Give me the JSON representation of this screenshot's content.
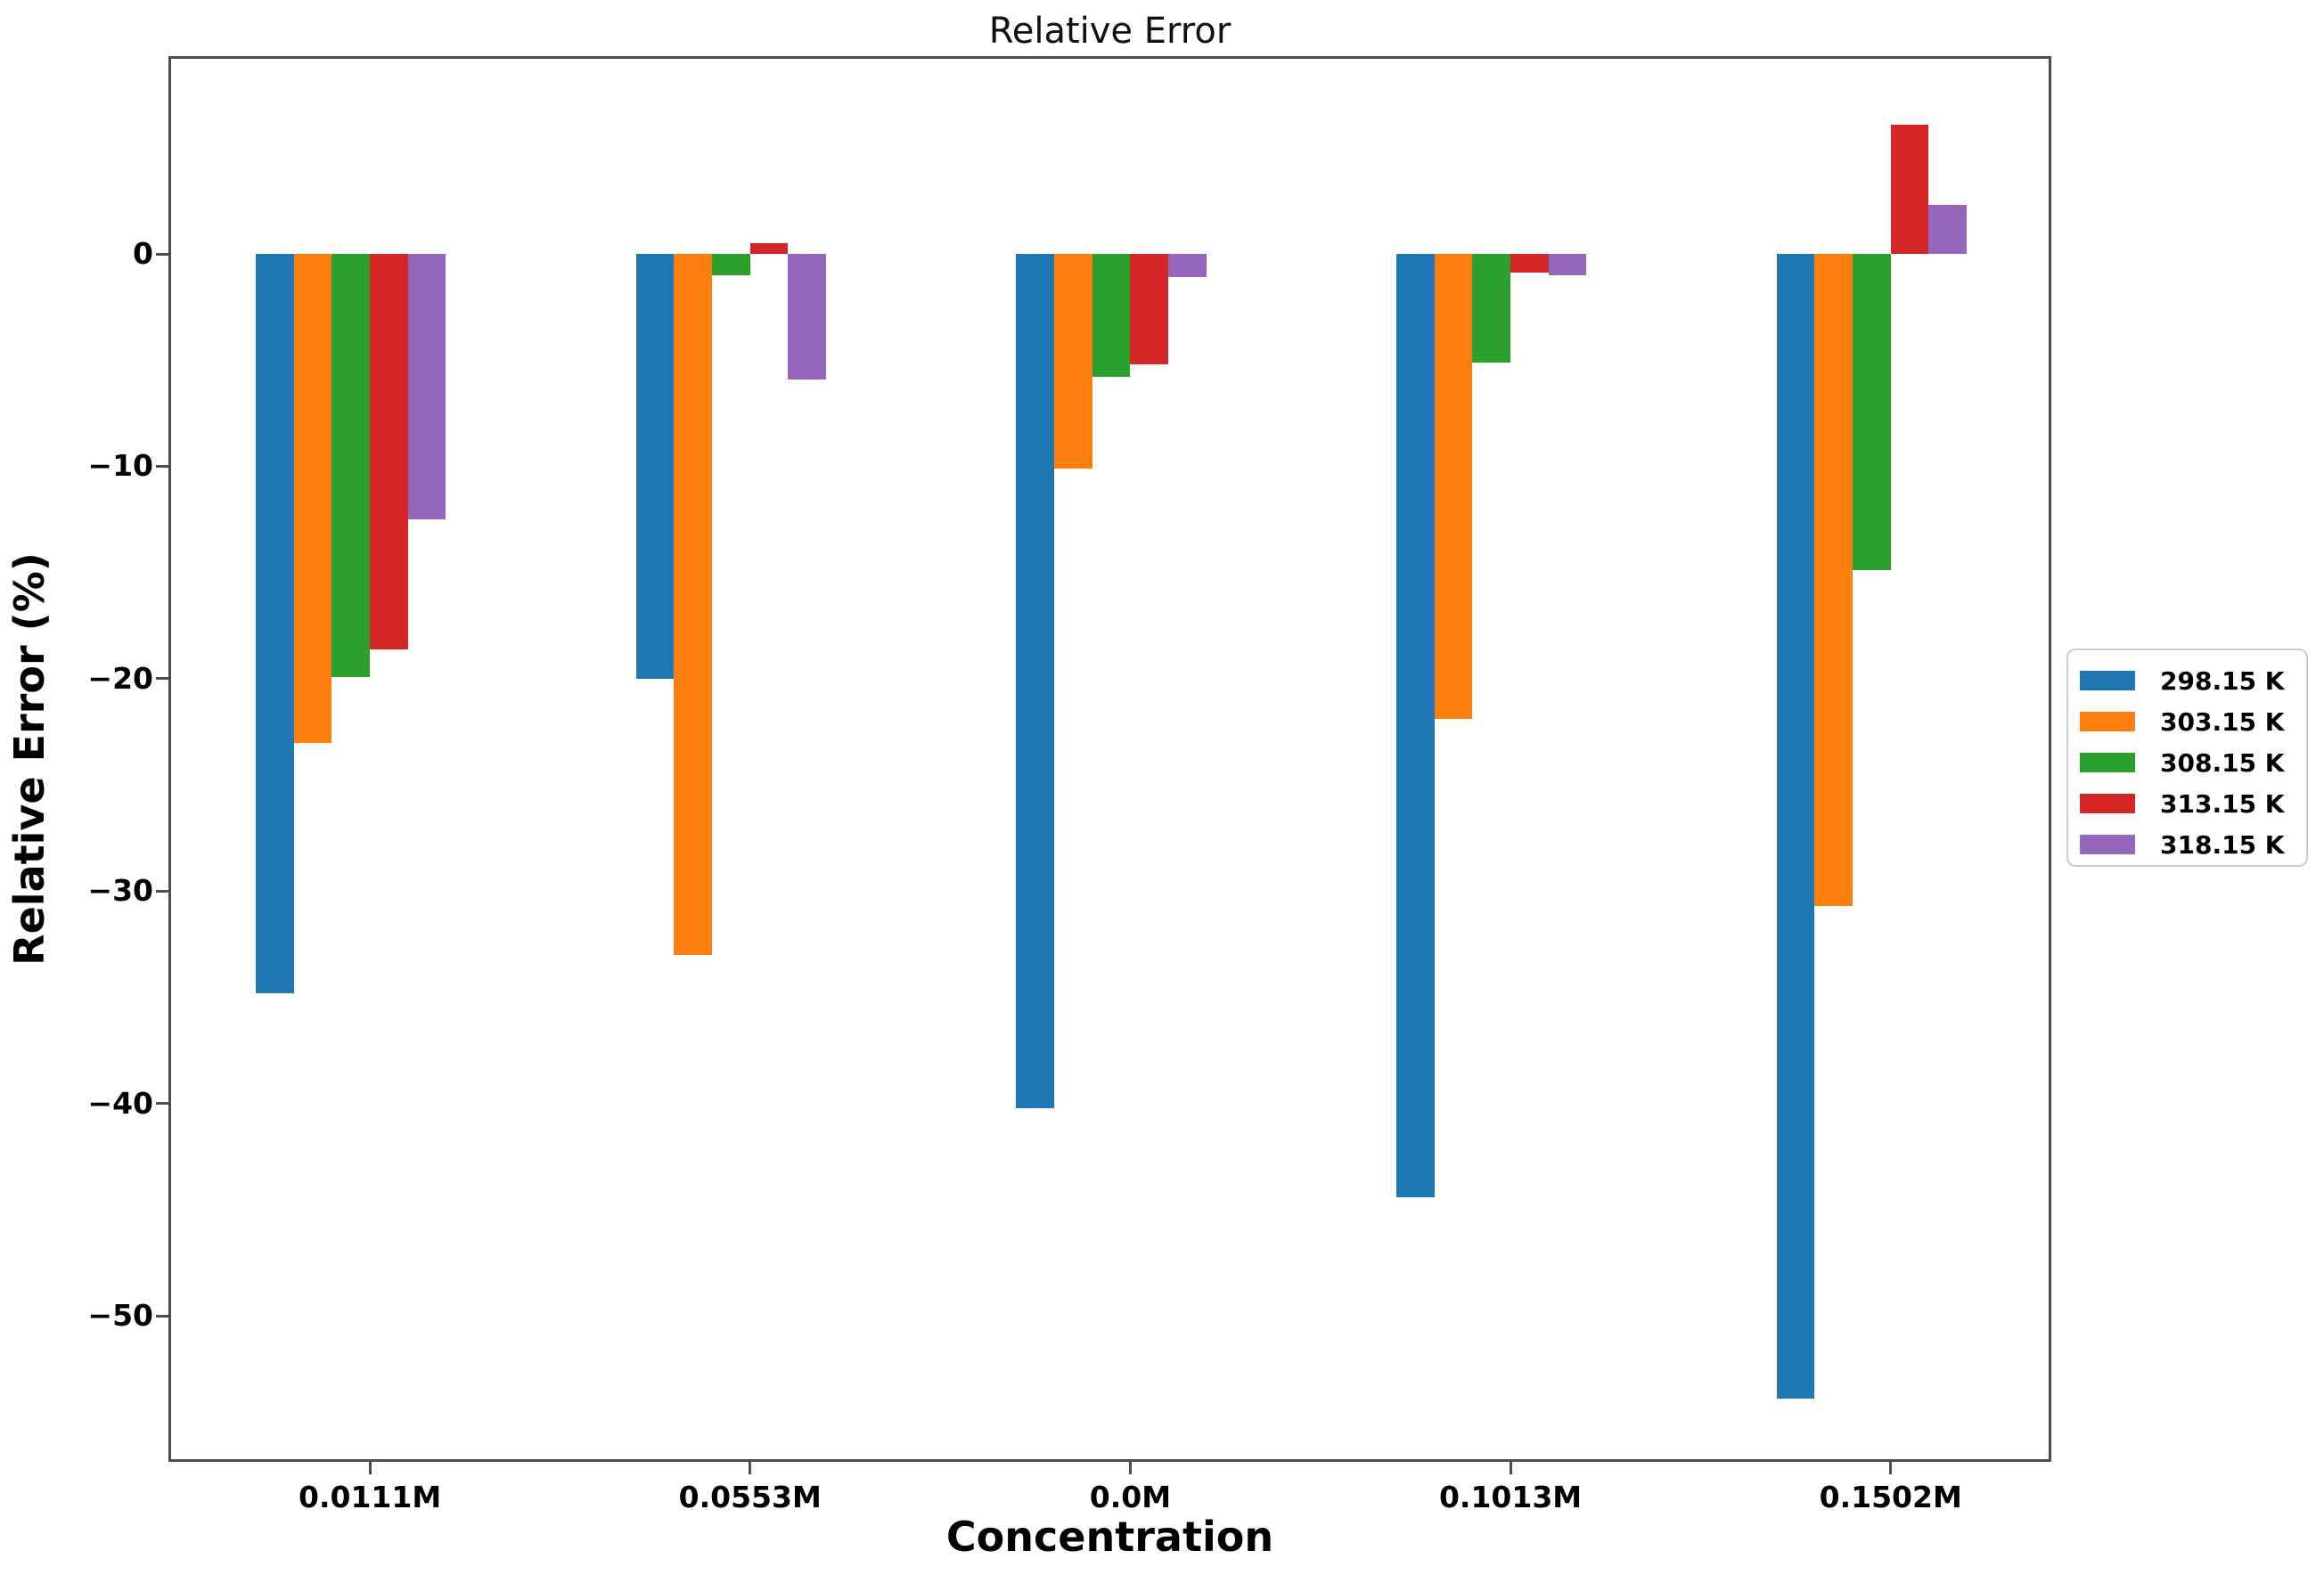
{
  "chart_data": {
    "type": "bar",
    "title": "Relative Error",
    "xlabel": "Concentration",
    "ylabel": "Relative Error (%)",
    "categories": [
      "0.0111M",
      "0.0553M",
      "0.0M",
      "0.1013M",
      "0.1502M"
    ],
    "series": [
      {
        "name": "298.15 K",
        "color": "#1f77b4",
        "values": [
          -34.8,
          -20.0,
          -40.2,
          -44.4,
          -53.9
        ]
      },
      {
        "name": "303.15 K",
        "color": "#ff7f0e",
        "values": [
          -23.0,
          -33.0,
          -10.1,
          -21.9,
          -30.7
        ]
      },
      {
        "name": "308.15 K",
        "color": "#2ca02c",
        "values": [
          -19.9,
          -1.0,
          -5.8,
          -5.1,
          -14.9
        ]
      },
      {
        "name": "313.15 K",
        "color": "#d62728",
        "values": [
          -18.6,
          0.5,
          -5.2,
          -0.9,
          6.1
        ]
      },
      {
        "name": "318.15 K",
        "color": "#9467bd",
        "values": [
          -12.5,
          -5.9,
          -1.1,
          -1.0,
          2.3
        ]
      }
    ],
    "ylim": [
      -56.9,
      9.3
    ],
    "y_ticks": [
      0,
      -10,
      -20,
      -30,
      -40,
      -50
    ],
    "grid": false,
    "legend_position": "right, outside axes, vertically centered",
    "bar_group_note": "5 bars per category; bars hang from the zero line; positive bars only for 313.15 K (0.0553M, 0.1502M) and 318.15 K (0.1502M)"
  }
}
